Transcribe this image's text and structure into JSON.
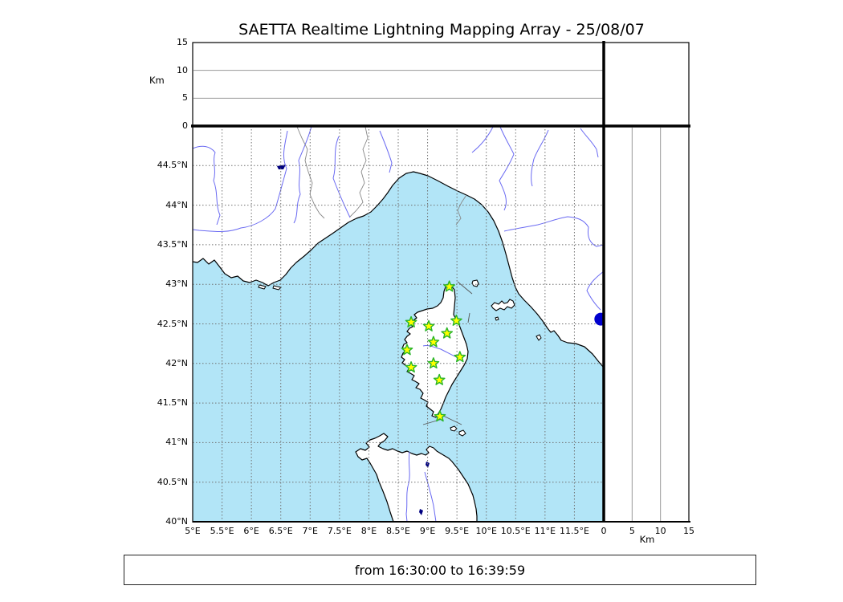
{
  "window": {
    "title": "SAETTA Realtime Lightning Mapping Array - 25/08/07"
  },
  "footer": {
    "time_range": "from 16:30:00 to 16:39:59"
  },
  "top_altitude_panel": {
    "unit_label": "Km",
    "tick_labels": [
      "0",
      "5",
      "10",
      "15"
    ],
    "tick_values": [
      0,
      5,
      10,
      15
    ],
    "range_km": [
      0,
      15
    ],
    "gridlines_km": [
      5,
      10
    ]
  },
  "right_altitude_panel": {
    "unit_label": "Km",
    "tick_labels": [
      "0",
      "5",
      "10",
      "15"
    ],
    "tick_values": [
      0,
      5,
      10,
      15
    ],
    "range_km": [
      0,
      15
    ],
    "gridlines_km": [
      5,
      10
    ]
  },
  "map_panel": {
    "lon_range_deg_e": [
      5,
      12
    ],
    "lat_range_deg_n": [
      40,
      45
    ],
    "lon_ticks": [
      {
        "label": "5°E",
        "value": 5
      },
      {
        "label": "5.5°E",
        "value": 5.5
      },
      {
        "label": "6°E",
        "value": 6
      },
      {
        "label": "6.5°E",
        "value": 6.5
      },
      {
        "label": "7°E",
        "value": 7
      },
      {
        "label": "7.5°E",
        "value": 7.5
      },
      {
        "label": "8°E",
        "value": 8
      },
      {
        "label": "8.5°E",
        "value": 8.5
      },
      {
        "label": "9°E",
        "value": 9
      },
      {
        "label": "9.5°E",
        "value": 9.5
      },
      {
        "label": "10°E",
        "value": 10
      },
      {
        "label": "10.5°E",
        "value": 10.5
      },
      {
        "label": "11°E",
        "value": 11
      },
      {
        "label": "11.5°E",
        "value": 11.5
      }
    ],
    "lat_ticks": [
      {
        "label": "40°N",
        "value": 40
      },
      {
        "label": "40.5°N",
        "value": 40.5
      },
      {
        "label": "41°N",
        "value": 41
      },
      {
        "label": "41.5°N",
        "value": 41.5
      },
      {
        "label": "42°N",
        "value": 42
      },
      {
        "label": "42.5°N",
        "value": 42.5
      },
      {
        "label": "43°N",
        "value": 43
      },
      {
        "label": "43.5°N",
        "value": 43.5
      },
      {
        "label": "44°N",
        "value": 44
      },
      {
        "label": "44.5°N",
        "value": 44.5
      }
    ],
    "colors": {
      "sea": "#b2e5f7",
      "land": "#ffffff",
      "coastline": "#000000",
      "river": "#6a6af2",
      "lake": "#000080",
      "grid": "#707070",
      "admin_border": "#888888",
      "station_fill": "#ffff00",
      "station_edge": "#28b428",
      "source_fill": "#0000cd"
    },
    "stations": [
      {
        "lon": 9.37,
        "lat": 42.97
      },
      {
        "lon": 8.72,
        "lat": 42.52
      },
      {
        "lon": 9.02,
        "lat": 42.47
      },
      {
        "lon": 9.49,
        "lat": 42.54
      },
      {
        "lon": 9.33,
        "lat": 42.38
      },
      {
        "lon": 9.1,
        "lat": 42.27
      },
      {
        "lon": 8.65,
        "lat": 42.17
      },
      {
        "lon": 9.55,
        "lat": 42.08
      },
      {
        "lon": 9.1,
        "lat": 42.0
      },
      {
        "lon": 8.72,
        "lat": 41.95
      },
      {
        "lon": 9.2,
        "lat": 41.79
      },
      {
        "lon": 9.21,
        "lat": 41.33
      }
    ],
    "sources": [
      {
        "lon": 11.95,
        "lat": 42.56
      }
    ]
  },
  "chart_data": {
    "type": "scatter",
    "title": "SAETTA Realtime Lightning Mapping Array - 25/08/07",
    "subtitle": "from 16:30:00 to 16:39:59",
    "panels": {
      "map": {
        "x_range_deg_e": [
          5,
          12
        ],
        "y_range_deg_n": [
          40,
          45
        ],
        "x_tick_labels": [
          "5°E",
          "5.5°E",
          "6°E",
          "6.5°E",
          "7°E",
          "7.5°E",
          "8°E",
          "8.5°E",
          "9°E",
          "9.5°E",
          "10°E",
          "10.5°E",
          "11°E",
          "11.5°E"
        ],
        "y_tick_labels": [
          "40°N",
          "40.5°N",
          "41°N",
          "41.5°N",
          "42°N",
          "42.5°N",
          "43°N",
          "43.5°N",
          "44°N",
          "44.5°N"
        ],
        "grid": "dashed"
      },
      "top_altitude": {
        "ylabel": "Km",
        "y_range": [
          0,
          15
        ],
        "y_ticks": [
          0,
          5,
          10,
          15
        ],
        "points": []
      },
      "right_altitude": {
        "xlabel": "Km",
        "x_range": [
          0,
          15
        ],
        "x_ticks": [
          0,
          5,
          10,
          15
        ],
        "points": []
      }
    },
    "series": [
      {
        "name": "lma-stations",
        "marker": "star",
        "fill": "#ffff00",
        "edge": "#28b428",
        "points_lon_lat": [
          [
            9.37,
            42.97
          ],
          [
            8.72,
            42.52
          ],
          [
            9.02,
            42.47
          ],
          [
            9.49,
            42.54
          ],
          [
            9.33,
            42.38
          ],
          [
            9.1,
            42.27
          ],
          [
            8.65,
            42.17
          ],
          [
            9.55,
            42.08
          ],
          [
            9.1,
            42.0
          ],
          [
            8.72,
            41.95
          ],
          [
            9.2,
            41.79
          ],
          [
            9.21,
            41.33
          ]
        ]
      },
      {
        "name": "source-point",
        "marker": "circle",
        "fill": "#0000cd",
        "points_lon_lat": [
          [
            11.95,
            42.56
          ]
        ]
      }
    ]
  }
}
